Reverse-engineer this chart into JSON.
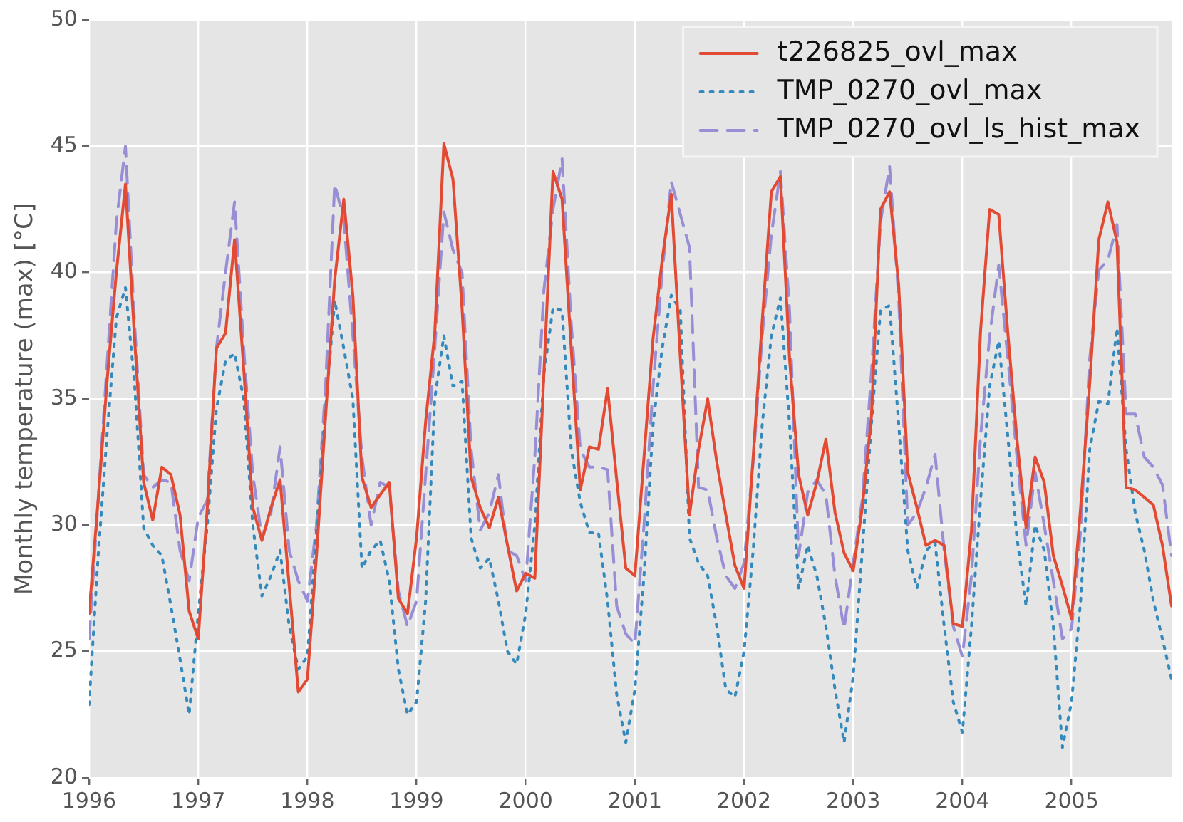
{
  "chart_data": {
    "type": "line",
    "ylabel": "Monthly temperature (max) [°C]",
    "xlim": [
      "1996-01",
      "2005-12"
    ],
    "xticks": [
      "1996",
      "1997",
      "1998",
      "1999",
      "2000",
      "2001",
      "2002",
      "2003",
      "2004",
      "2005"
    ],
    "ylim": [
      20,
      50
    ],
    "yticks": [
      20,
      25,
      30,
      35,
      40,
      45,
      50
    ],
    "grid": true,
    "legend": "top right",
    "marker": "none",
    "x": [
      "1996-01",
      "1996-02",
      "1996-03",
      "1996-04",
      "1996-05",
      "1996-06",
      "1996-07",
      "1996-08",
      "1996-09",
      "1996-10",
      "1996-11",
      "1996-12",
      "1997-01",
      "1997-02",
      "1997-03",
      "1997-04",
      "1997-05",
      "1997-06",
      "1997-07",
      "1997-08",
      "1997-09",
      "1997-10",
      "1997-11",
      "1997-12",
      "1998-01",
      "1998-02",
      "1998-03",
      "1998-04",
      "1998-05",
      "1998-06",
      "1998-07",
      "1998-08",
      "1998-09",
      "1998-10",
      "1998-11",
      "1998-12",
      "1999-01",
      "1999-02",
      "1999-03",
      "1999-04",
      "1999-05",
      "1999-06",
      "1999-07",
      "1999-08",
      "1999-09",
      "1999-10",
      "1999-11",
      "1999-12",
      "2000-01",
      "2000-02",
      "2000-03",
      "2000-04",
      "2000-05",
      "2000-06",
      "2000-07",
      "2000-08",
      "2000-09",
      "2000-10",
      "2000-11",
      "2000-12",
      "2001-01",
      "2001-02",
      "2001-03",
      "2001-04",
      "2001-05",
      "2001-06",
      "2001-07",
      "2001-08",
      "2001-09",
      "2001-10",
      "2001-11",
      "2001-12",
      "2002-01",
      "2002-02",
      "2002-03",
      "2002-04",
      "2002-05",
      "2002-06",
      "2002-07",
      "2002-08",
      "2002-09",
      "2002-10",
      "2002-11",
      "2002-12",
      "2003-01",
      "2003-02",
      "2003-03",
      "2003-04",
      "2003-05",
      "2003-06",
      "2003-07",
      "2003-08",
      "2003-09",
      "2003-10",
      "2003-11",
      "2003-12",
      "2004-01",
      "2004-02",
      "2004-03",
      "2004-04",
      "2004-05",
      "2004-06",
      "2004-07",
      "2004-08",
      "2004-09",
      "2004-10",
      "2004-11",
      "2004-12",
      "2005-01",
      "2005-02",
      "2005-03",
      "2005-04",
      "2005-05",
      "2005-06",
      "2005-07",
      "2005-08",
      "2005-09",
      "2005-10",
      "2005-11",
      "2005-12"
    ],
    "series": [
      {
        "name": "t226825_ovl_max",
        "color": "#e24a33",
        "line_style": "solid",
        "values": [
          26.5,
          31,
          35.8,
          40,
          43.5,
          37.4,
          31.7,
          30.2,
          32.3,
          32.0,
          30.4,
          26.6,
          25.5,
          30.7,
          37,
          37.6,
          41.3,
          36.2,
          30.7,
          29.4,
          30.7,
          31.8,
          27.6,
          23.4,
          23.9,
          28.8,
          34.3,
          39.7,
          42.9,
          39.1,
          31.9,
          30.7,
          31.2,
          31.7,
          27.1,
          26.5,
          29.5,
          34.1,
          37.6,
          45.1,
          43.7,
          38.6,
          31.9,
          30.7,
          29.9,
          31.1,
          29.2,
          27.4,
          28.1,
          27.9,
          36,
          44,
          42.9,
          37,
          31.4,
          33.1,
          33,
          35.4,
          31.8,
          28.3,
          28,
          32.7,
          37.4,
          40.5,
          43.1,
          36.6,
          30.4,
          33,
          35,
          32.5,
          30.4,
          28.4,
          27.5,
          32.7,
          38.1,
          43.2,
          43.8,
          36.6,
          32,
          30.4,
          31.7,
          33.4,
          30.5,
          28.9,
          28.2,
          30.7,
          34.3,
          42.5,
          43.2,
          39.5,
          32.1,
          30.7,
          29.2,
          29.4,
          29.2,
          26.1,
          26,
          29.8,
          37.7,
          42.5,
          42.3,
          37.6,
          33.4,
          29.9,
          32.7,
          31.7,
          28.8,
          27.6,
          26.3,
          30.7,
          35.6,
          41.3,
          42.8,
          41.2,
          31.5,
          31.4,
          31.1,
          30.8,
          29.2,
          26.8
        ]
      },
      {
        "name": "TMP_0270_ovl_max",
        "color": "#348abd",
        "line_style": "dotted",
        "values": [
          22.9,
          28.8,
          33.7,
          38.2,
          39.4,
          35.6,
          29.9,
          29.2,
          28.8,
          26.8,
          24.7,
          22.5,
          26.5,
          30,
          34.6,
          36.5,
          36.8,
          35,
          30,
          27.2,
          28,
          29,
          26,
          24.3,
          24.8,
          29.8,
          34.6,
          38.9,
          37,
          35,
          28.3,
          29,
          29.4,
          27.8,
          24.3,
          22.5,
          23,
          27,
          35,
          37.5,
          35.5,
          35.7,
          29.5,
          28.3,
          28.7,
          27,
          25,
          24.5,
          26.5,
          30,
          36,
          38.6,
          38.5,
          33,
          30.9,
          29.7,
          29.7,
          27,
          23.3,
          21.4,
          23.5,
          28,
          34,
          37,
          39.1,
          38.5,
          29.5,
          28.5,
          28,
          26,
          23.5,
          23.2,
          25,
          29,
          34,
          37.5,
          39,
          34,
          27.5,
          29.2,
          28,
          26,
          23.5,
          21.4,
          24,
          29,
          34,
          38.5,
          38.7,
          34,
          29,
          27.5,
          29,
          29.3,
          26,
          23,
          21.8,
          26,
          31,
          35.5,
          37.3,
          33.5,
          29.5,
          26.8,
          30,
          29,
          26,
          21.2,
          23,
          27,
          33,
          34.9,
          34.8,
          37.8,
          33,
          30.5,
          29,
          27,
          25.5,
          23.9
        ]
      },
      {
        "name": "TMP_0270_ovl_ls_hist_max",
        "color": "#988ed5",
        "line_style": "dashed",
        "values": [
          25.5,
          31,
          36.5,
          42,
          45,
          38,
          32,
          31.5,
          31.8,
          31.7,
          29,
          27.8,
          30.3,
          31,
          37,
          40,
          42.8,
          37,
          32,
          29.5,
          30.5,
          33.1,
          29,
          27.8,
          27,
          30,
          35.5,
          43.5,
          42.1,
          37.5,
          32.7,
          30,
          31.7,
          31.5,
          27.4,
          26,
          27,
          32,
          37,
          42.4,
          40.9,
          40,
          33,
          29.8,
          30.5,
          32,
          29,
          28.8,
          27.8,
          32.7,
          39.3,
          42.5,
          44.5,
          38,
          33,
          32.3,
          32.3,
          32.2,
          26.8,
          25.7,
          25.3,
          30,
          35.5,
          40,
          43.6,
          42.3,
          41,
          31.5,
          31.4,
          29.5,
          28,
          27.5,
          28.5,
          32.5,
          37.5,
          41.5,
          44,
          38.5,
          28.8,
          31.3,
          31.8,
          31.2,
          28,
          25.9,
          28.5,
          31,
          36,
          42,
          44.2,
          39,
          30,
          30.5,
          31.5,
          32.8,
          29,
          26,
          24.8,
          28,
          33.5,
          37.5,
          40.3,
          36.6,
          32.7,
          29.2,
          32.1,
          30,
          27.8,
          25.5,
          25.9,
          29.8,
          36.6,
          40.1,
          40.5,
          41.9,
          34.4,
          34.4,
          32.7,
          32.3,
          31.6,
          28.8
        ]
      }
    ]
  }
}
